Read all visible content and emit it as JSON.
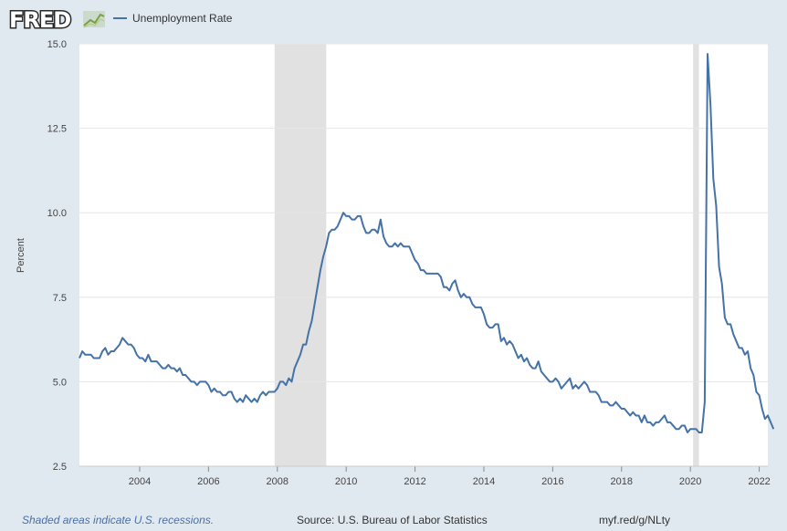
{
  "header": {
    "logo_text": "FRED",
    "logo_icon": "fred-chart-icon"
  },
  "colors": {
    "series": "#4572a7",
    "recession": "#e1e1e1",
    "plot_background": "#ffffff",
    "frame_background": "#e1e9f0",
    "note": "#4a6fa5"
  },
  "chart_data": {
    "type": "line",
    "title": "",
    "xlabel": "",
    "ylabel": "Percent",
    "ylim": [
      2.5,
      15.0
    ],
    "yticks": [
      2.5,
      5.0,
      7.5,
      10.0,
      12.5,
      15.0
    ],
    "ytick_labels": [
      "2.5",
      "5.0",
      "7.5",
      "10.0",
      "12.5",
      "15.0"
    ],
    "xlim": [
      2002.25,
      2022.25
    ],
    "xticks": [
      2004,
      2006,
      2008,
      2010,
      2012,
      2014,
      2016,
      2018,
      2020,
      2022
    ],
    "xtick_labels": [
      "2004",
      "2006",
      "2008",
      "2010",
      "2012",
      "2014",
      "2016",
      "2018",
      "2020",
      "2022"
    ],
    "recessions": [
      [
        2007.92,
        2009.42
      ],
      [
        2020.08,
        2020.25
      ]
    ],
    "legend": "top-left",
    "grid": true,
    "series": [
      {
        "name": "Unemployment Rate",
        "start": "2002-04",
        "frequency": "monthly",
        "values": [
          5.7,
          5.9,
          5.8,
          5.8,
          5.8,
          5.7,
          5.7,
          5.7,
          5.9,
          6.0,
          5.8,
          5.9,
          5.9,
          6.0,
          6.1,
          6.3,
          6.2,
          6.1,
          6.1,
          6.0,
          5.8,
          5.7,
          5.7,
          5.6,
          5.8,
          5.6,
          5.6,
          5.6,
          5.5,
          5.4,
          5.4,
          5.5,
          5.4,
          5.4,
          5.3,
          5.4,
          5.2,
          5.2,
          5.1,
          5.0,
          5.0,
          4.9,
          5.0,
          5.0,
          5.0,
          4.9,
          4.7,
          4.8,
          4.7,
          4.7,
          4.6,
          4.6,
          4.7,
          4.7,
          4.5,
          4.4,
          4.5,
          4.4,
          4.6,
          4.5,
          4.4,
          4.5,
          4.4,
          4.6,
          4.7,
          4.6,
          4.7,
          4.7,
          4.7,
          4.8,
          5.0,
          5.0,
          4.9,
          5.1,
          5.0,
          5.4,
          5.6,
          5.8,
          6.1,
          6.1,
          6.5,
          6.8,
          7.3,
          7.8,
          8.3,
          8.7,
          9.0,
          9.4,
          9.5,
          9.5,
          9.6,
          9.8,
          10.0,
          9.9,
          9.9,
          9.8,
          9.8,
          9.9,
          9.9,
          9.6,
          9.4,
          9.4,
          9.5,
          9.5,
          9.4,
          9.8,
          9.3,
          9.1,
          9.0,
          9.0,
          9.1,
          9.0,
          9.1,
          9.0,
          9.0,
          9.0,
          8.8,
          8.6,
          8.5,
          8.3,
          8.3,
          8.2,
          8.2,
          8.2,
          8.2,
          8.2,
          8.1,
          7.8,
          7.8,
          7.7,
          7.9,
          8.0,
          7.7,
          7.5,
          7.6,
          7.5,
          7.5,
          7.3,
          7.2,
          7.2,
          7.2,
          7.0,
          6.7,
          6.6,
          6.6,
          6.7,
          6.7,
          6.2,
          6.3,
          6.1,
          6.2,
          6.1,
          5.9,
          5.7,
          5.8,
          5.6,
          5.7,
          5.5,
          5.4,
          5.4,
          5.6,
          5.3,
          5.2,
          5.1,
          5.0,
          5.0,
          5.1,
          5.0,
          4.8,
          4.9,
          5.0,
          5.1,
          4.8,
          4.9,
          4.8,
          4.9,
          5.0,
          4.9,
          4.7,
          4.7,
          4.7,
          4.6,
          4.4,
          4.4,
          4.4,
          4.3,
          4.3,
          4.4,
          4.3,
          4.2,
          4.2,
          4.1,
          4.0,
          4.1,
          4.0,
          4.0,
          3.8,
          4.0,
          3.8,
          3.8,
          3.7,
          3.8,
          3.8,
          3.9,
          4.0,
          3.8,
          3.8,
          3.7,
          3.6,
          3.6,
          3.7,
          3.7,
          3.5,
          3.6,
          3.6,
          3.6,
          3.5,
          3.5,
          4.4,
          14.7,
          13.2,
          11.0,
          10.2,
          8.4,
          7.9,
          6.9,
          6.7,
          6.7,
          6.4,
          6.2,
          6.0,
          6.0,
          5.8,
          5.9,
          5.4,
          5.2,
          4.7,
          4.6,
          4.2,
          3.9,
          4.0,
          3.8,
          3.6
        ]
      }
    ]
  },
  "footer": {
    "note": "Shaded areas indicate U.S. recessions.",
    "source": "Source: U.S. Bureau of Labor Statistics",
    "url": "myf.red/g/NLty"
  }
}
